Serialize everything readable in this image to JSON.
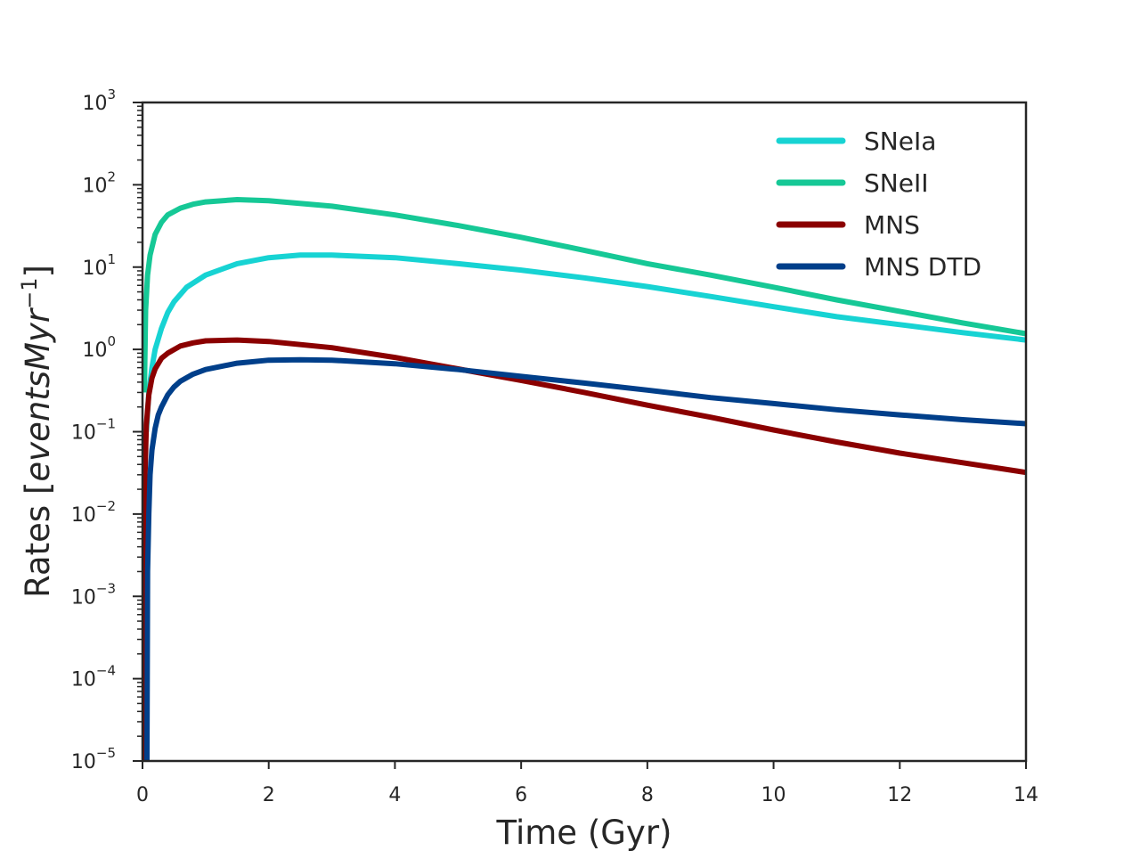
{
  "chart_data": {
    "type": "line",
    "title": "",
    "xlabel": "Time (Gyr)",
    "ylabel": {
      "prefix": "Rates [",
      "math": "eventsMyr",
      "sup": "−1",
      "suffix": "]"
    },
    "xlim": [
      0,
      14
    ],
    "ylim": [
      1e-05,
      1000
    ],
    "yscale": "log",
    "xticks": [
      0,
      2,
      4,
      6,
      8,
      10,
      12,
      14
    ],
    "xtick_labels": [
      "0",
      "2",
      "4",
      "6",
      "8",
      "10",
      "12",
      "14"
    ],
    "yticks": [
      {
        "base": "10",
        "exp": "−5",
        "value": 1e-05
      },
      {
        "base": "10",
        "exp": "−4",
        "value": 0.0001
      },
      {
        "base": "10",
        "exp": "−3",
        "value": 0.001
      },
      {
        "base": "10",
        "exp": "−2",
        "value": 0.01
      },
      {
        "base": "10",
        "exp": "−1",
        "value": 0.1
      },
      {
        "base": "10",
        "exp": "0",
        "value": 1
      },
      {
        "base": "10",
        "exp": "1",
        "value": 10
      },
      {
        "base": "10",
        "exp": "2",
        "value": 100
      },
      {
        "base": "10",
        "exp": "3",
        "value": 1000
      }
    ],
    "legend_position": "top-right",
    "series": [
      {
        "name": "SNeIa",
        "color": "#17d3d3",
        "x": [
          0.06,
          0.1,
          0.15,
          0.2,
          0.3,
          0.4,
          0.5,
          0.7,
          1.0,
          1.5,
          2.0,
          2.5,
          3.0,
          4.0,
          5.0,
          6.0,
          7.0,
          8.0,
          9.0,
          10.0,
          11.0,
          12.0,
          13.0,
          14.0
        ],
        "y": [
          0.1,
          0.3,
          0.6,
          1.0,
          1.8,
          2.8,
          3.8,
          5.7,
          8.0,
          11.0,
          13.0,
          14.0,
          14.0,
          13.0,
          11.0,
          9.2,
          7.4,
          5.8,
          4.4,
          3.3,
          2.5,
          2.0,
          1.6,
          1.3
        ]
      },
      {
        "name": "SNeII",
        "color": "#16c896",
        "x": [
          0.03,
          0.05,
          0.08,
          0.12,
          0.2,
          0.3,
          0.4,
          0.6,
          0.8,
          1.0,
          1.5,
          2.0,
          3.0,
          4.0,
          5.0,
          6.0,
          7.0,
          8.0,
          9.0,
          10.0,
          11.0,
          12.0,
          13.0,
          14.0
        ],
        "y": [
          0.3,
          3.0,
          8.0,
          14.0,
          25.0,
          35.0,
          43.0,
          52.0,
          58.0,
          62.0,
          66.0,
          64.0,
          55.0,
          43.0,
          32.0,
          23.0,
          16.0,
          11.0,
          8.0,
          5.7,
          4.0,
          2.9,
          2.1,
          1.55
        ]
      },
      {
        "name": "MNS",
        "color": "#8b0000",
        "x": [
          0.04,
          0.06,
          0.1,
          0.15,
          0.2,
          0.3,
          0.4,
          0.6,
          0.8,
          1.0,
          1.5,
          2.0,
          3.0,
          4.0,
          5.0,
          6.0,
          7.0,
          8.0,
          9.0,
          10.0,
          11.0,
          12.0,
          13.0,
          14.0
        ],
        "y": [
          0.03,
          0.12,
          0.28,
          0.45,
          0.58,
          0.78,
          0.9,
          1.1,
          1.2,
          1.27,
          1.3,
          1.25,
          1.05,
          0.8,
          0.58,
          0.42,
          0.3,
          0.21,
          0.15,
          0.105,
          0.075,
          0.055,
          0.042,
          0.032
        ]
      },
      {
        "name": "MNS DTD",
        "color": "#003f8a",
        "x": [
          0.07,
          0.08,
          0.1,
          0.12,
          0.15,
          0.2,
          0.25,
          0.3,
          0.4,
          0.5,
          0.6,
          0.8,
          1.0,
          1.5,
          2.0,
          2.5,
          3.0,
          4.0,
          5.0,
          6.0,
          7.0,
          8.0,
          9.0,
          10.0,
          11.0,
          12.0,
          13.0,
          14.0
        ],
        "y": [
          1e-05,
          0.002,
          0.01,
          0.03,
          0.06,
          0.11,
          0.16,
          0.2,
          0.28,
          0.35,
          0.41,
          0.5,
          0.57,
          0.68,
          0.74,
          0.75,
          0.74,
          0.67,
          0.57,
          0.47,
          0.39,
          0.32,
          0.26,
          0.22,
          0.185,
          0.16,
          0.14,
          0.125
        ]
      }
    ]
  }
}
